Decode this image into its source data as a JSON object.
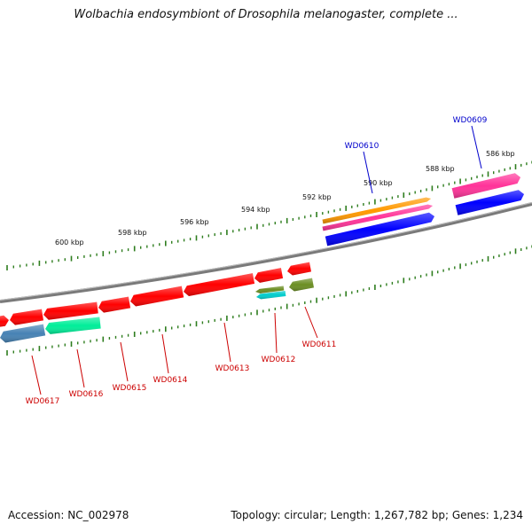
{
  "header": {
    "title": "Wolbachia endosymbiont of Drosophila melanogaster, complete ..."
  },
  "footer": {
    "accession": "Accession: NC_002978",
    "stats": "Topology: circular; Length: 1,267,782 bp; Genes: 1,234"
  },
  "colors": {
    "backbone": "#808080",
    "tick": "#2e7d1e",
    "label_forward": "#0000cc",
    "label_reverse": "#cc0000"
  },
  "scale": {
    "unit": "kbp",
    "ticks": [
      {
        "label": "586 kbp"
      },
      {
        "label": "588 kbp"
      },
      {
        "label": "590 kbp"
      },
      {
        "label": "592 kbp"
      },
      {
        "label": "594 kbp"
      },
      {
        "label": "596 kbp"
      },
      {
        "label": "598 kbp"
      },
      {
        "label": "600 kbp"
      }
    ]
  },
  "genes_forward": [
    {
      "id": "WD0610",
      "colors": [
        "#ff9900",
        "#ff3399",
        "#0000ff"
      ]
    },
    {
      "id": "WD0609",
      "colors": [
        "#ff3399",
        "#0000ff"
      ]
    }
  ],
  "genes_reverse": [
    {
      "id": "WD0611",
      "colors": [
        "#ff0000",
        "#6b8e23"
      ]
    },
    {
      "id": "WD0612",
      "colors": [
        "#ff0000",
        "#6b8e23",
        "#00cccc"
      ]
    },
    {
      "id": "WD0613",
      "colors": [
        "#ff0000"
      ]
    },
    {
      "id": "WD0614",
      "colors": [
        "#ff0000"
      ]
    },
    {
      "id": "WD0615",
      "colors": [
        "#ff0000"
      ]
    },
    {
      "id": "WD0616",
      "colors": [
        "#ff0000",
        "#00ee99"
      ]
    },
    {
      "id": "WD0617",
      "colors": [
        "#ff0000",
        "#4682b4"
      ]
    }
  ]
}
